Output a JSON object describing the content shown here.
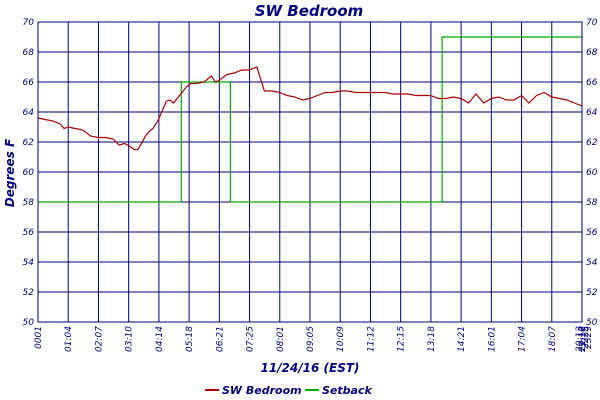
{
  "chart_data": {
    "type": "line",
    "title": "SW Bedroom",
    "xlabel": "11/24/16 (EST)",
    "ylabel": "Degrees F",
    "ylim": [
      50,
      70
    ],
    "yticks": [
      "50",
      "52",
      "54",
      "56",
      "58",
      "60",
      "62",
      "64",
      "66",
      "68",
      "70"
    ],
    "right_yticks": [
      "50",
      "52",
      "54",
      "56",
      "58",
      "60",
      "62",
      "64",
      "66",
      "68",
      "70"
    ],
    "xlim_minutes": [
      1,
      1440
    ],
    "xticks": [
      "0001",
      "01:04",
      "02:07",
      "03:10",
      "04:14",
      "05:18",
      "06:21",
      "07:25",
      "08:01",
      "09:05",
      "10:09",
      "11:12",
      "12:15",
      "13:18",
      "14:21",
      "16:01",
      "17:04",
      "18:07",
      "19:10",
      "20:13",
      "21:17",
      "2225",
      "2329",
      "2352"
    ],
    "grid": true,
    "legend_position": "bottom",
    "colors": {
      "plot_border": "#000080",
      "grid": "#000080",
      "text": "#000080"
    },
    "series": [
      {
        "name": "SW Bedroom",
        "color": "#aa0000",
        "x_minutes": [
          1,
          20,
          40,
          60,
          70,
          80,
          100,
          120,
          140,
          160,
          180,
          200,
          215,
          230,
          245,
          255,
          265,
          275,
          285,
          295,
          305,
          318,
          330,
          340,
          350,
          360,
          375,
          385,
          395,
          405,
          420,
          440,
          460,
          470,
          480,
          500,
          520,
          540,
          560,
          580,
          600,
          620,
          640,
          660,
          680,
          700,
          720,
          740,
          760,
          780,
          800,
          820,
          840,
          860,
          880,
          900,
          920,
          940,
          960,
          980,
          1000,
          1020,
          1040,
          1060,
          1080,
          1100,
          1120,
          1140,
          1160,
          1180,
          1200,
          1220,
          1240,
          1260,
          1280,
          1300,
          1320,
          1340,
          1360,
          1380,
          1400,
          1420,
          1440
        ],
        "values": [
          63.6,
          63.5,
          63.4,
          63.2,
          62.9,
          63.0,
          62.9,
          62.8,
          62.4,
          62.3,
          62.3,
          62.2,
          61.8,
          61.9,
          61.7,
          61.5,
          61.5,
          61.9,
          62.4,
          62.7,
          62.9,
          63.4,
          64.1,
          64.7,
          64.8,
          64.6,
          65.1,
          65.4,
          65.7,
          65.9,
          65.9,
          66.0,
          66.4,
          66.0,
          66.1,
          66.5,
          66.6,
          66.8,
          66.8,
          67.0,
          65.4,
          65.4,
          65.3,
          65.1,
          65.0,
          64.8,
          64.9,
          65.1,
          65.3,
          65.3,
          65.4,
          65.4,
          65.3,
          65.3,
          65.3,
          65.3,
          65.3,
          65.2,
          65.2,
          65.2,
          65.1,
          65.1,
          65.1,
          64.9,
          64.9,
          65.0,
          64.9,
          64.6,
          65.2,
          64.6,
          64.9,
          65.0,
          64.8,
          64.8,
          65.1,
          64.6,
          65.1,
          65.3,
          65.0,
          64.9,
          64.8,
          64.6,
          64.4
        ]
      },
      {
        "name": "Setback",
        "color": "#00aa00",
        "x_minutes": [
          1,
          380,
          380,
          510,
          510,
          1070,
          1070,
          1440
        ],
        "values": [
          58,
          58,
          66,
          66,
          58,
          58,
          69,
          69
        ]
      }
    ]
  }
}
